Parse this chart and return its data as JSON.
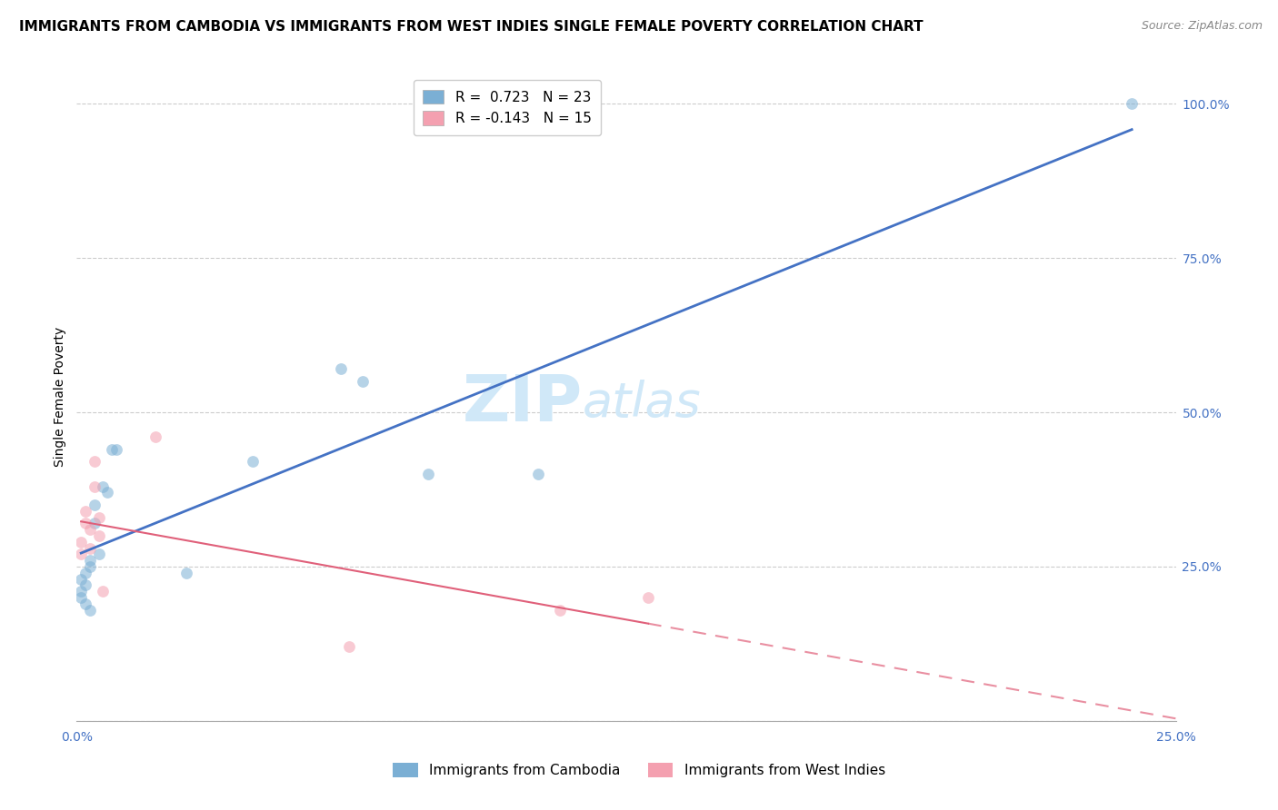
{
  "title": "IMMIGRANTS FROM CAMBODIA VS IMMIGRANTS FROM WEST INDIES SINGLE FEMALE POVERTY CORRELATION CHART",
  "source": "Source: ZipAtlas.com",
  "xlabel_label": "Immigrants from Cambodia",
  "ylabel_label": "Single Female Poverty",
  "watermark_line1": "ZIP",
  "watermark_line2": "atlas",
  "xlim": [
    0.0,
    0.25
  ],
  "ylim": [
    0.0,
    1.05
  ],
  "xtick_positions": [
    0.0,
    0.05,
    0.1,
    0.15,
    0.2,
    0.25
  ],
  "xtick_labels": [
    "0.0%",
    "",
    "",
    "",
    "",
    "25.0%"
  ],
  "ytick_positions": [
    0.0,
    0.25,
    0.5,
    0.75,
    1.0
  ],
  "ytick_labels": [
    "",
    "25.0%",
    "50.0%",
    "75.0%",
    "100.0%"
  ],
  "cambodia_x": [
    0.001,
    0.001,
    0.001,
    0.002,
    0.002,
    0.002,
    0.003,
    0.003,
    0.003,
    0.004,
    0.004,
    0.005,
    0.006,
    0.007,
    0.008,
    0.009,
    0.025,
    0.04,
    0.06,
    0.065,
    0.08,
    0.105,
    0.24
  ],
  "cambodia_y": [
    0.21,
    0.23,
    0.2,
    0.22,
    0.24,
    0.19,
    0.26,
    0.25,
    0.18,
    0.35,
    0.32,
    0.27,
    0.38,
    0.37,
    0.44,
    0.44,
    0.24,
    0.42,
    0.57,
    0.55,
    0.4,
    0.4,
    1.0
  ],
  "west_indies_x": [
    0.001,
    0.001,
    0.002,
    0.002,
    0.003,
    0.003,
    0.004,
    0.004,
    0.005,
    0.005,
    0.006,
    0.018,
    0.062,
    0.11,
    0.13
  ],
  "west_indies_y": [
    0.29,
    0.27,
    0.32,
    0.34,
    0.28,
    0.31,
    0.42,
    0.38,
    0.3,
    0.33,
    0.21,
    0.46,
    0.12,
    0.18,
    0.2
  ],
  "cambodia_color": "#7bafd4",
  "west_indies_color": "#f4a0b0",
  "cambodia_line_color": "#4472c4",
  "west_indies_line_color": "#e0607a",
  "R_cambodia": 0.723,
  "N_cambodia": 23,
  "R_west_indies": -0.143,
  "N_west_indies": 15,
  "scatter_alpha": 0.55,
  "scatter_size": 85,
  "background_color": "#ffffff",
  "grid_color": "#cccccc",
  "title_fontsize": 11,
  "axis_label_fontsize": 10,
  "tick_fontsize": 10,
  "legend_fontsize": 11,
  "source_fontsize": 9,
  "watermark_fontsize": 52,
  "watermark_color": "#d0e8f8",
  "axis_color": "#4472c4"
}
